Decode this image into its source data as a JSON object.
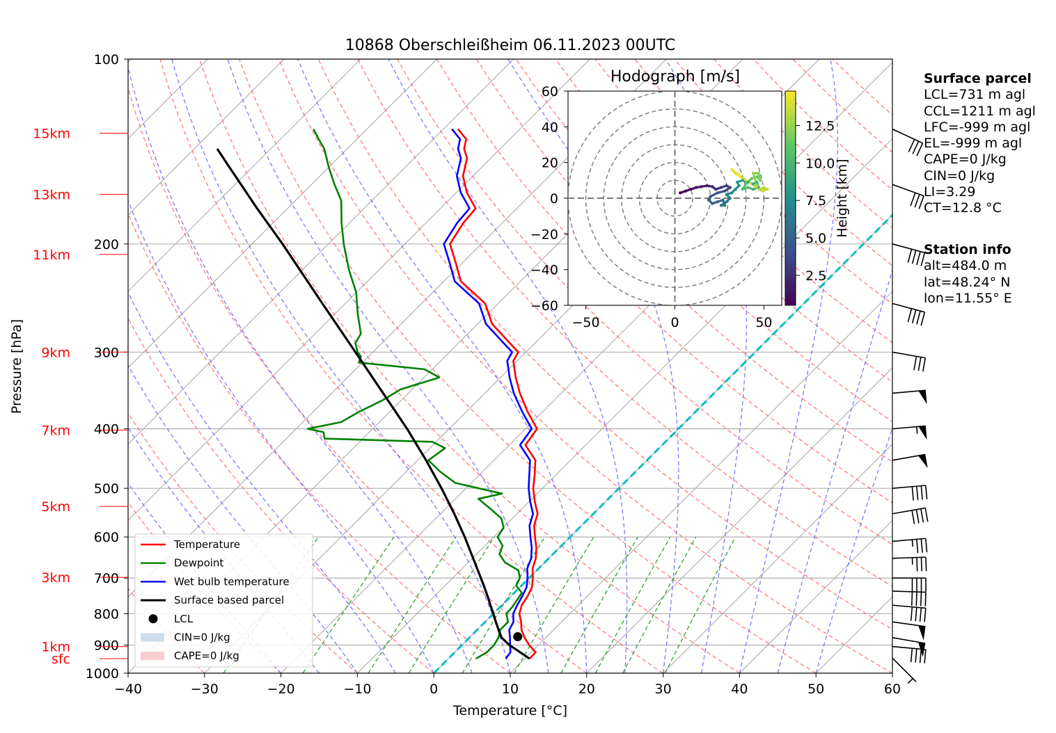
{
  "chart_data": {
    "type": "line",
    "title": "10868 Oberschleißheim 06.11.2023 00UTC",
    "xlabel": "Temperature [°C]",
    "ylabel": "Pressure [hPa]",
    "xlim": [
      -40,
      60
    ],
    "ylim": [
      1000,
      100
    ],
    "x_ticks": [
      -40,
      -30,
      -20,
      -10,
      0,
      10,
      20,
      30,
      40,
      50,
      60
    ],
    "x_tick_labels": [
      "−40",
      "−30",
      "−20",
      "−10",
      "0",
      "10",
      "20",
      "30",
      "40",
      "50",
      "60"
    ],
    "y_ticks": [
      100,
      200,
      300,
      400,
      500,
      600,
      700,
      800,
      900,
      1000
    ],
    "y_tick_labels": [
      "100",
      "200",
      "300",
      "400",
      "500",
      "600",
      "700",
      "800",
      "900",
      "1000"
    ],
    "y_scale": "log",
    "skew": "45°",
    "grid": true,
    "height_labels": [
      {
        "label": "15km",
        "p": 132
      },
      {
        "label": "13km",
        "p": 166
      },
      {
        "label": "11km",
        "p": 208
      },
      {
        "label": "9km",
        "p": 300
      },
      {
        "label": "7km",
        "p": 402
      },
      {
        "label": "5km",
        "p": 535
      },
      {
        "label": "3km",
        "p": 698
      },
      {
        "label": "1km",
        "p": 905
      },
      {
        "label": "sfc",
        "p": 947
      }
    ],
    "series": [
      {
        "name": "Temperature",
        "color": "#ff0000",
        "p": [
          947,
          925,
          900,
          875,
          850,
          825,
          800,
          775,
          750,
          725,
          700,
          675,
          650,
          625,
          600,
          575,
          550,
          525,
          500,
          475,
          450,
          425,
          400,
          375,
          350,
          330,
          310,
          300,
          290,
          270,
          250,
          230,
          215,
          200,
          185,
          175,
          165,
          155,
          145,
          140,
          135,
          130
        ],
        "t": [
          10.6,
          10.6,
          8.8,
          7.2,
          5.8,
          4.7,
          3.4,
          2.6,
          2.2,
          1.6,
          0.5,
          -0.8,
          -1.7,
          -3.0,
          -4.6,
          -6.2,
          -7.3,
          -9.3,
          -11.2,
          -12.8,
          -14.6,
          -17.9,
          -18.5,
          -22.0,
          -25.4,
          -28.0,
          -30.5,
          -31.0,
          -33.3,
          -38.1,
          -41.7,
          -47.8,
          -50.8,
          -54.1,
          -55.1,
          -55.4,
          -58.6,
          -61.3,
          -63.1,
          -64.7,
          -65.7,
          -68.1
        ]
      },
      {
        "name": "Dewpoint",
        "color": "#008000",
        "p": [
          947,
          925,
          900,
          875,
          850,
          825,
          800,
          780,
          760,
          740,
          720,
          700,
          680,
          660,
          640,
          620,
          600,
          580,
          560,
          540,
          520,
          510,
          490,
          470,
          450,
          430,
          420,
          415,
          405,
          400,
          390,
          375,
          360,
          345,
          330,
          320,
          312,
          305,
          300,
          290,
          280,
          260,
          240,
          220,
          200,
          185,
          170,
          160,
          150,
          140,
          135,
          130
        ],
        "t": [
          3.6,
          4.2,
          4.2,
          3.8,
          3.0,
          3.0,
          1.7,
          1.6,
          1.3,
          1.0,
          -0.7,
          -1.2,
          -2.4,
          -5.2,
          -7.0,
          -7.7,
          -9.5,
          -9.9,
          -11.4,
          -14.1,
          -17.0,
          -14.6,
          -22.1,
          -25.5,
          -28.6,
          -28.0,
          -30.5,
          -45.0,
          -46.0,
          -48.5,
          -45.0,
          -44.0,
          -42.5,
          -41.5,
          -38.0,
          -41.0,
          -50.5,
          -51.0,
          -52.0,
          -53.5,
          -54.0,
          -57.0,
          -60.0,
          -64.0,
          -68.0,
          -71.0,
          -74.0,
          -77.0,
          -80.0,
          -83.0,
          -85.0,
          -87.0
        ]
      },
      {
        "name": "Wet bulb temperature",
        "color": "#0000ff",
        "p": [
          947,
          925,
          900,
          875,
          850,
          825,
          800,
          775,
          750,
          725,
          700,
          675,
          650,
          625,
          600,
          575,
          550,
          525,
          500,
          475,
          450,
          425,
          400,
          375,
          350,
          330,
          310,
          300,
          290,
          270,
          250,
          230,
          215,
          200,
          185,
          175,
          165,
          155,
          145,
          140,
          135,
          130
        ],
        "t": [
          7.5,
          7.3,
          6.3,
          5.3,
          4.2,
          3.7,
          2.6,
          2.0,
          1.5,
          0.9,
          -0.2,
          -1.5,
          -2.3,
          -3.6,
          -5.2,
          -6.8,
          -7.9,
          -9.9,
          -11.8,
          -13.5,
          -15.3,
          -18.6,
          -19.2,
          -22.7,
          -26.2,
          -28.8,
          -31.3,
          -31.8,
          -34.1,
          -38.9,
          -42.5,
          -48.6,
          -51.6,
          -54.9,
          -55.9,
          -56.2,
          -59.4,
          -62.1,
          -63.9,
          -65.5,
          -66.5,
          -68.9
        ]
      },
      {
        "name": "Surface based parcel",
        "color": "#000000",
        "p": [
          947,
          925,
          900,
          875,
          850,
          825,
          800,
          775,
          750,
          725,
          700,
          650,
          600,
          550,
          500,
          450,
          400,
          350,
          300,
          250,
          200,
          175,
          150,
          140
        ],
        "t": [
          10.6,
          8.6,
          6.2,
          4.2,
          2.8,
          1.4,
          0.0,
          -1.5,
          -3.0,
          -4.6,
          -6.3,
          -9.9,
          -13.8,
          -18.2,
          -23.2,
          -28.9,
          -35.5,
          -43.3,
          -52.3,
          -63.0,
          -76.0,
          -84.0,
          -93.0,
          -97.0
        ]
      }
    ],
    "lcl": {
      "name": "LCL",
      "p": 872,
      "t": 6.2
    },
    "legend": {
      "placement": "bottom-left",
      "entries": [
        "Temperature",
        "Dewpoint",
        "Wet bulb temperature",
        "Surface based parcel",
        "LCL",
        "CIN=0 J/kg",
        "CAPE=0 J/kg"
      ]
    },
    "reference_lines": {
      "isotherm_0C": {
        "color": "#00bfbf"
      },
      "dry_adiabats_color": "#ff6a6a",
      "moist_adiabats_color": "#6a6aff",
      "mixing_ratio_color": "#2ca02c"
    },
    "wind_barbs": [
      {
        "p": 945,
        "speed_kt": 5,
        "dir": 225
      },
      {
        "p": 905,
        "speed_kt": 40,
        "dir": 265
      },
      {
        "p": 875,
        "speed_kt": 50,
        "dir": 260
      },
      {
        "p": 825,
        "speed_kt": 50,
        "dir": 262
      },
      {
        "p": 775,
        "speed_kt": 40,
        "dir": 265
      },
      {
        "p": 735,
        "speed_kt": 40,
        "dir": 268
      },
      {
        "p": 700,
        "speed_kt": 40,
        "dir": 270
      },
      {
        "p": 650,
        "speed_kt": 35,
        "dir": 272
      },
      {
        "p": 610,
        "speed_kt": 35,
        "dir": 275
      },
      {
        "p": 550,
        "speed_kt": 40,
        "dir": 280
      },
      {
        "p": 500,
        "speed_kt": 40,
        "dir": 275
      },
      {
        "p": 450,
        "speed_kt": 50,
        "dir": 280
      },
      {
        "p": 400,
        "speed_kt": 55,
        "dir": 275
      },
      {
        "p": 350,
        "speed_kt": 50,
        "dir": 275
      },
      {
        "p": 300,
        "speed_kt": 30,
        "dir": 260
      },
      {
        "p": 250,
        "speed_kt": 40,
        "dir": 255
      },
      {
        "p": 200,
        "speed_kt": 40,
        "dir": 255
      },
      {
        "p": 160,
        "speed_kt": 30,
        "dir": 250
      },
      {
        "p": 130,
        "speed_kt": 30,
        "dir": 245
      }
    ],
    "hodograph": {
      "title": "Hodograph [m/s]",
      "xlim": [
        -60,
        60
      ],
      "ylim": [
        -60,
        60
      ],
      "x_ticks": [
        -50,
        0,
        50
      ],
      "x_tick_labels": [
        "−50",
        "0",
        "50"
      ],
      "y_ticks": [
        -60,
        -40,
        -20,
        0,
        20,
        40,
        60
      ],
      "y_tick_labels": [
        "−60",
        "−40",
        "−20",
        "0",
        "20",
        "40",
        "60"
      ],
      "rings": [
        10,
        20,
        30,
        40,
        50,
        60
      ],
      "colorbar": {
        "label": "Height [km]",
        "ticks": [
          2.5,
          5.0,
          7.5,
          10.0,
          12.5
        ],
        "tick_labels": [
          "2.5",
          "5.0",
          "7.5",
          "10.0",
          "12.5"
        ],
        "range": [
          0.5,
          14.8
        ]
      },
      "points": [
        {
          "u": 3,
          "v": 3,
          "h": 0.5
        },
        {
          "u": 6,
          "v": 4,
          "h": 0.8
        },
        {
          "u": 9,
          "v": 5,
          "h": 1.0
        },
        {
          "u": 12,
          "v": 6,
          "h": 1.3
        },
        {
          "u": 15,
          "v": 6.5,
          "h": 1.6
        },
        {
          "u": 18,
          "v": 7,
          "h": 1.9
        },
        {
          "u": 21,
          "v": 6.5,
          "h": 2.2
        },
        {
          "u": 23,
          "v": 5,
          "h": 2.5
        },
        {
          "u": 26,
          "v": 6,
          "h": 2.8
        },
        {
          "u": 29,
          "v": 7,
          "h": 3.1
        },
        {
          "u": 31,
          "v": 6,
          "h": 3.4
        },
        {
          "u": 28,
          "v": 4,
          "h": 3.7
        },
        {
          "u": 24,
          "v": 3,
          "h": 4.0
        },
        {
          "u": 20,
          "v": 1,
          "h": 4.3
        },
        {
          "u": 19,
          "v": -1,
          "h": 4.6
        },
        {
          "u": 21,
          "v": -3,
          "h": 4.9
        },
        {
          "u": 24,
          "v": -2,
          "h": 5.2
        },
        {
          "u": 27,
          "v": -1,
          "h": 5.5
        },
        {
          "u": 28,
          "v": -4,
          "h": 5.8
        },
        {
          "u": 26,
          "v": -4,
          "h": 6.1
        },
        {
          "u": 29,
          "v": -2,
          "h": 6.4
        },
        {
          "u": 31,
          "v": 0,
          "h": 6.7
        },
        {
          "u": 29,
          "v": 2,
          "h": 7.0
        },
        {
          "u": 32,
          "v": 3,
          "h": 7.3
        },
        {
          "u": 34,
          "v": 5,
          "h": 7.6
        },
        {
          "u": 36,
          "v": 7,
          "h": 7.9
        },
        {
          "u": 35,
          "v": 9,
          "h": 8.2
        },
        {
          "u": 38,
          "v": 10,
          "h": 8.5
        },
        {
          "u": 41,
          "v": 9,
          "h": 8.8
        },
        {
          "u": 44,
          "v": 8,
          "h": 9.1
        },
        {
          "u": 46,
          "v": 9,
          "h": 9.4
        },
        {
          "u": 47,
          "v": 6,
          "h": 9.7
        },
        {
          "u": 44,
          "v": 5,
          "h": 10.0
        },
        {
          "u": 41,
          "v": 6,
          "h": 10.3
        },
        {
          "u": 38,
          "v": 5,
          "h": 10.6
        },
        {
          "u": 40,
          "v": 8,
          "h": 10.9
        },
        {
          "u": 43,
          "v": 11,
          "h": 11.2
        },
        {
          "u": 46,
          "v": 12,
          "h": 11.5
        },
        {
          "u": 48,
          "v": 10,
          "h": 11.8
        },
        {
          "u": 47,
          "v": 14,
          "h": 12.1
        },
        {
          "u": 44,
          "v": 14,
          "h": 12.4
        },
        {
          "u": 46,
          "v": 7,
          "h": 12.7
        },
        {
          "u": 48,
          "v": 5,
          "h": 13.0
        },
        {
          "u": 50,
          "v": 6,
          "h": 13.3
        },
        {
          "u": 52,
          "v": 5,
          "h": 13.6
        },
        {
          "u": 49,
          "v": 4,
          "h": 13.9
        },
        {
          "u": 34,
          "v": 14,
          "h": 14.2
        },
        {
          "u": 32,
          "v": 16,
          "h": 14.4
        },
        {
          "u": 36,
          "v": 13,
          "h": 14.6
        }
      ]
    }
  },
  "surface_parcel": {
    "title": "Surface parcel",
    "lines": [
      "LCL=731 m agl",
      "CCL=1211 m agl",
      "LFC=-999 m agl",
      "EL=-999 m agl",
      "CAPE=0 J/kg",
      "CIN=0 J/kg",
      "LI=3.29",
      "CT=12.8 °C"
    ]
  },
  "station_info": {
    "title": "Station info",
    "lines": [
      "alt=484.0 m",
      "lat=48.24° N",
      "lon=11.55° E"
    ]
  }
}
